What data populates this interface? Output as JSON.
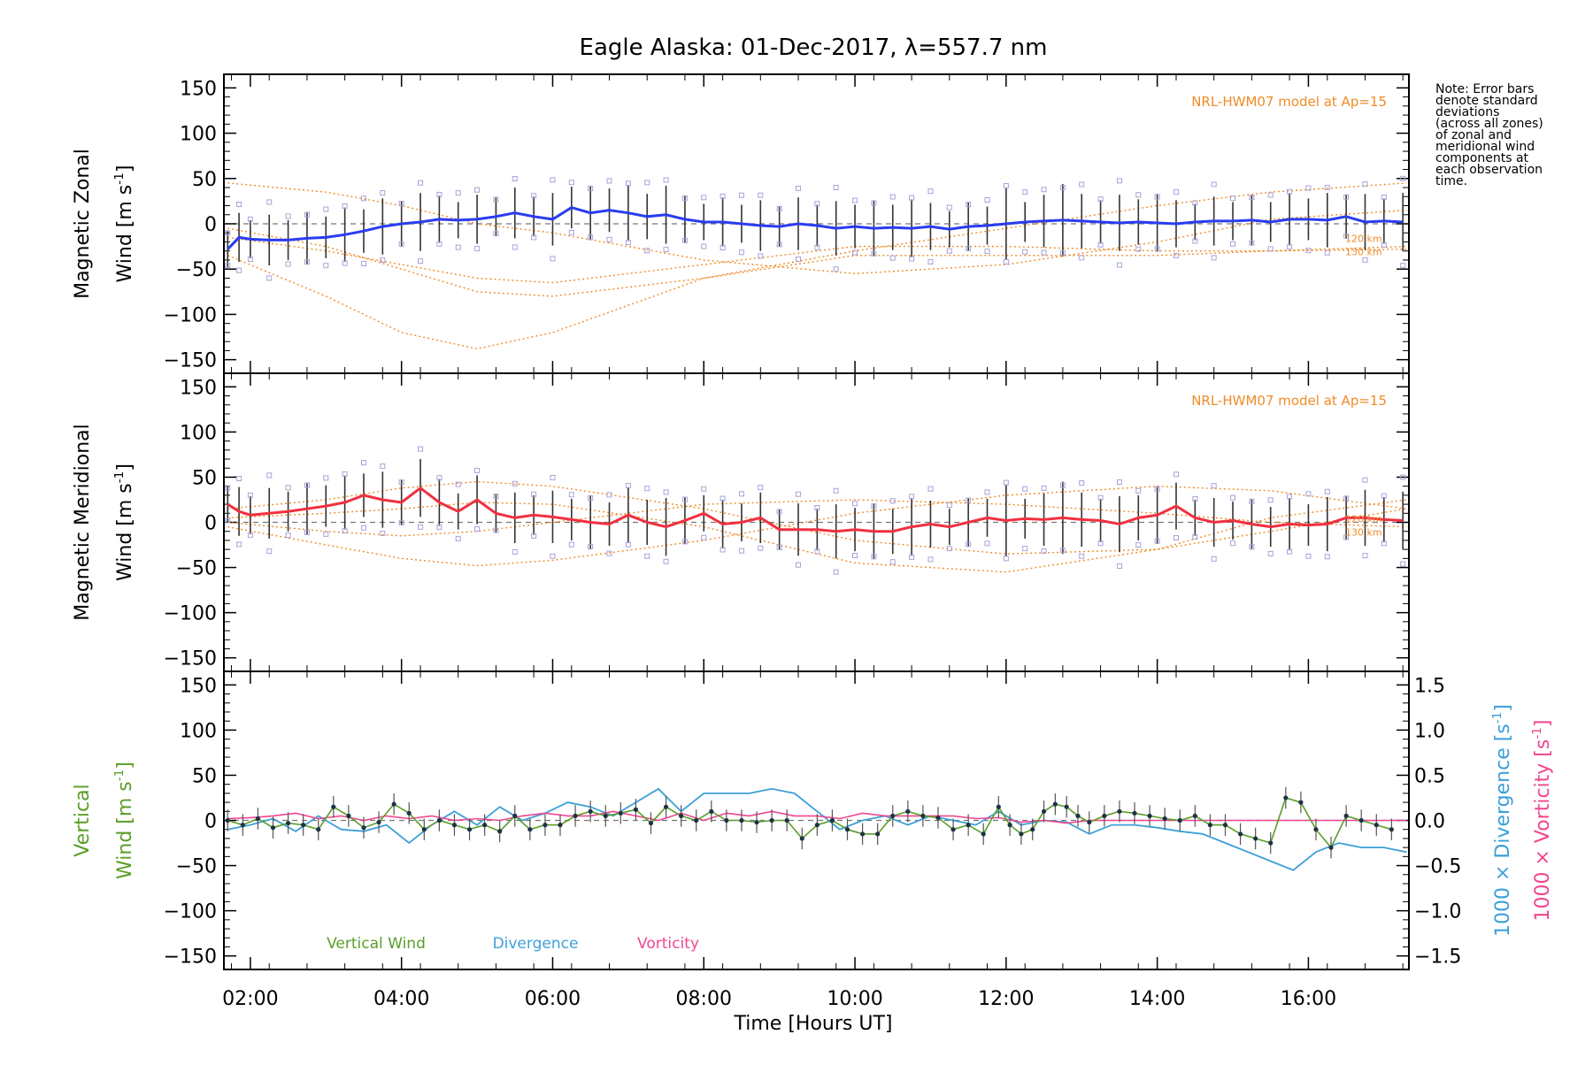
{
  "title": "Eagle Alaska: 01-Dec-2017, λ=557.7 nm",
  "note": [
    "Note: Error bars",
    "denote standard",
    "deviations",
    "(across all zones)",
    "of zonal and",
    "meridional wind",
    "components at",
    "each observation",
    "time."
  ],
  "colors": {
    "zonal": "#2a3cf0",
    "meridional": "#f03040",
    "model": "#f08c28",
    "vertical": "#5a9e28",
    "divergence": "#3ca0d8",
    "vorticity": "#f04690",
    "samples": "#a8a2d8",
    "errorbar": "#333333"
  },
  "chart_data": [
    {
      "type": "line",
      "panel": "zonal",
      "ylabel_line1": "Magnetic Zonal",
      "ylabel_line2_prefix": "Wind [m s",
      "ylabel_exp": "-1",
      "ylabel_suffix": "]",
      "ylim": [
        -165,
        165
      ],
      "yticks": [
        "150",
        "100",
        "50",
        "0",
        "−50",
        "−100",
        "−150"
      ],
      "ytick_values": [
        150,
        100,
        50,
        0,
        -50,
        -100,
        -150
      ],
      "model_label": "NRL-HWM07 model at Ap=15",
      "alt_labels": [
        "120 km",
        "130 km"
      ],
      "series": [
        {
          "name": "Zonal wind",
          "x": [
            1.7,
            1.85,
            2.0,
            2.25,
            2.5,
            2.75,
            3.0,
            3.25,
            3.5,
            3.75,
            4.0,
            4.25,
            4.5,
            4.75,
            5.0,
            5.25,
            5.5,
            5.75,
            6.0,
            6.25,
            6.5,
            6.75,
            7.0,
            7.25,
            7.5,
            7.75,
            8.0,
            8.25,
            8.5,
            8.75,
            9.0,
            9.25,
            9.5,
            9.75,
            10.0,
            10.25,
            10.5,
            10.75,
            11.0,
            11.25,
            11.5,
            11.75,
            12.0,
            12.25,
            12.5,
            12.75,
            13.0,
            13.25,
            13.5,
            13.75,
            14.0,
            14.25,
            14.5,
            14.75,
            15.0,
            15.25,
            15.5,
            15.75,
            16.0,
            16.25,
            16.5,
            16.75,
            17.0,
            17.25
          ],
          "y": [
            -28,
            -15,
            -17,
            -18,
            -18,
            -16,
            -15,
            -12,
            -8,
            -3,
            0,
            2,
            5,
            4,
            5,
            8,
            12,
            8,
            5,
            18,
            12,
            15,
            12,
            8,
            10,
            5,
            2,
            2,
            0,
            -2,
            -3,
            0,
            -2,
            -5,
            -3,
            -5,
            -4,
            -5,
            -3,
            -6,
            -3,
            -2,
            0,
            2,
            3,
            4,
            3,
            2,
            1,
            2,
            1,
            0,
            2,
            3,
            3,
            4,
            2,
            5,
            5,
            4,
            8,
            2,
            3,
            2
          ]
        }
      ],
      "model_curves": [
        {
          "x": [
            1.7,
            3.0,
            4.0,
            5.0,
            6.0,
            8.0,
            10.0,
            12.0,
            14.0,
            15.5,
            17.3
          ],
          "y": [
            45,
            35,
            20,
            0,
            -10,
            -40,
            -55,
            -45,
            -20,
            5,
            15
          ]
        },
        {
          "x": [
            1.7,
            3.0,
            4.0,
            5.0,
            6.0,
            8.0,
            10.0,
            12.0,
            14.0,
            15.5,
            17.3
          ],
          "y": [
            -5,
            -25,
            -50,
            -75,
            -80,
            -60,
            -30,
            -5,
            20,
            35,
            45
          ]
        },
        {
          "x": [
            1.7,
            3.0,
            4.0,
            5.0,
            6.0,
            8.0,
            10.0,
            12.0,
            14.0,
            15.5,
            17.3
          ],
          "y": [
            -35,
            -80,
            -120,
            -138,
            -120,
            -60,
            -35,
            -35,
            -35,
            -30,
            -28
          ]
        },
        {
          "x": [
            1.7,
            3.0,
            4.0,
            5.0,
            6.0,
            8.0,
            10.0,
            12.0,
            14.0,
            15.5,
            17.3
          ],
          "y": [
            -15,
            -30,
            -45,
            -60,
            -65,
            -45,
            -25,
            -25,
            -30,
            -30,
            -25
          ]
        }
      ]
    },
    {
      "type": "line",
      "panel": "meridional",
      "ylabel_line1": "Magnetic Meridional",
      "ylabel_line2_prefix": "Wind [m s",
      "ylabel_exp": "-1",
      "ylabel_suffix": "]",
      "ylim": [
        -165,
        165
      ],
      "yticks": [
        "150",
        "100",
        "50",
        "0",
        "−50",
        "−100",
        "−150"
      ],
      "ytick_values": [
        150,
        100,
        50,
        0,
        -50,
        -100,
        -150
      ],
      "model_label": "NRL-HWM07 model at Ap=15",
      "alt_labels": [
        "120 km",
        "130 km"
      ],
      "series": [
        {
          "name": "Meridional wind",
          "x": [
            1.7,
            1.85,
            2.0,
            2.25,
            2.5,
            2.75,
            3.0,
            3.25,
            3.5,
            3.75,
            4.0,
            4.25,
            4.5,
            4.75,
            5.0,
            5.25,
            5.5,
            5.75,
            6.0,
            6.25,
            6.5,
            6.75,
            7.0,
            7.25,
            7.5,
            7.75,
            8.0,
            8.25,
            8.5,
            8.75,
            9.0,
            9.25,
            9.5,
            9.75,
            10.0,
            10.25,
            10.5,
            10.75,
            11.0,
            11.25,
            11.5,
            11.75,
            12.0,
            12.25,
            12.5,
            12.75,
            13.0,
            13.25,
            13.5,
            13.75,
            14.0,
            14.25,
            14.5,
            14.75,
            15.0,
            15.25,
            15.5,
            15.75,
            16.0,
            16.25,
            16.5,
            16.75,
            17.0,
            17.25
          ],
          "y": [
            20,
            12,
            8,
            10,
            12,
            15,
            18,
            22,
            30,
            25,
            22,
            38,
            22,
            12,
            25,
            10,
            5,
            8,
            6,
            3,
            0,
            -2,
            8,
            0,
            -5,
            2,
            10,
            -2,
            0,
            5,
            -8,
            -8,
            -8,
            -10,
            -8,
            -10,
            -10,
            -5,
            -2,
            -5,
            0,
            5,
            2,
            4,
            3,
            5,
            3,
            2,
            -2,
            5,
            8,
            18,
            5,
            0,
            2,
            -2,
            -5,
            -2,
            -3,
            -2,
            5,
            5,
            3,
            2
          ]
        }
      ],
      "model_curves": [
        {
          "x": [
            1.7,
            3.0,
            4.0,
            5.0,
            6.0,
            8.0,
            10.0,
            12.0,
            14.0,
            15.5,
            17.3
          ],
          "y": [
            15,
            25,
            38,
            45,
            40,
            15,
            -20,
            -35,
            -30,
            -10,
            15
          ]
        },
        {
          "x": [
            1.7,
            3.0,
            4.0,
            5.0,
            6.0,
            8.0,
            10.0,
            12.0,
            14.0,
            15.5,
            17.3
          ],
          "y": [
            -5,
            -25,
            -40,
            -48,
            -42,
            -20,
            10,
            30,
            40,
            35,
            15
          ]
        },
        {
          "x": [
            1.7,
            3.0,
            4.0,
            5.0,
            6.0,
            8.0,
            10.0,
            12.0,
            14.0,
            15.5,
            17.3
          ],
          "y": [
            5,
            10,
            15,
            22,
            20,
            -5,
            -45,
            -55,
            -30,
            5,
            25
          ]
        },
        {
          "x": [
            1.7,
            3.0,
            4.0,
            5.0,
            6.0,
            8.0,
            10.0,
            12.0,
            14.0,
            15.5,
            17.3
          ],
          "y": [
            0,
            -10,
            -15,
            -10,
            0,
            20,
            25,
            20,
            10,
            0,
            -5
          ]
        }
      ]
    },
    {
      "type": "line",
      "panel": "vertical",
      "ylabel_line1": "Vertical",
      "ylabel_line2_prefix": "Wind [m s",
      "ylabel_exp": "-1",
      "ylabel_suffix": "]",
      "ylim": [
        -165,
        165
      ],
      "yticks": [
        "150",
        "100",
        "50",
        "0",
        "−50",
        "−100",
        "−150"
      ],
      "ytick_values": [
        150,
        100,
        50,
        0,
        -50,
        -100,
        -150
      ],
      "right_axis": {
        "ylim": [
          -1.65,
          1.65
        ],
        "yticks": [
          "1.5",
          "1.0",
          "0.5",
          "0.0",
          "−0.5",
          "−1.0",
          "−1.5"
        ],
        "ytick_values": [
          1.5,
          1.0,
          0.5,
          0.0,
          -0.5,
          -1.0,
          -1.5
        ],
        "label_div_prefix": "1000 × Divergence [s",
        "label_vort_prefix": "1000 × Vorticity [s",
        "label_exp": "-1",
        "label_suffix": "]"
      },
      "legend": [
        "Vertical Wind",
        "Divergence",
        "Vorticity"
      ],
      "series": [
        {
          "name": "Vertical Wind",
          "x": [
            1.7,
            1.9,
            2.1,
            2.3,
            2.5,
            2.7,
            2.9,
            3.1,
            3.3,
            3.5,
            3.7,
            3.9,
            4.1,
            4.3,
            4.5,
            4.7,
            4.9,
            5.1,
            5.3,
            5.5,
            5.7,
            5.9,
            6.1,
            6.3,
            6.5,
            6.7,
            6.9,
            7.1,
            7.3,
            7.5,
            7.7,
            7.9,
            8.1,
            8.3,
            8.5,
            8.7,
            8.9,
            9.1,
            9.3,
            9.5,
            9.7,
            9.9,
            10.1,
            10.3,
            10.5,
            10.7,
            10.9,
            11.1,
            11.3,
            11.5,
            11.7,
            11.9,
            12.05,
            12.2,
            12.35,
            12.5,
            12.65,
            12.8,
            12.95,
            13.1,
            13.3,
            13.5,
            13.7,
            13.9,
            14.1,
            14.3,
            14.5,
            14.7,
            14.9,
            15.1,
            15.3,
            15.5,
            15.7,
            15.9,
            16.1,
            16.3,
            16.5,
            16.7,
            16.9,
            17.1
          ],
          "y": [
            0,
            -5,
            2,
            -8,
            -3,
            -5,
            -10,
            15,
            5,
            -8,
            -2,
            18,
            8,
            -10,
            0,
            -5,
            -10,
            -5,
            -12,
            5,
            -10,
            -5,
            -5,
            5,
            10,
            5,
            8,
            12,
            -3,
            15,
            5,
            0,
            10,
            0,
            0,
            -2,
            0,
            0,
            -20,
            -5,
            0,
            -10,
            -15,
            -15,
            5,
            10,
            5,
            3,
            -10,
            -5,
            -15,
            15,
            -5,
            -15,
            -10,
            10,
            18,
            15,
            5,
            -2,
            5,
            10,
            8,
            5,
            2,
            0,
            5,
            -5,
            -5,
            -15,
            -20,
            -25,
            25,
            20,
            -10,
            -30,
            5,
            0,
            -5,
            -10
          ]
        },
        {
          "name": "Divergence",
          "x": [
            1.7,
            2.0,
            2.3,
            2.6,
            2.9,
            3.2,
            3.5,
            3.8,
            4.1,
            4.4,
            4.7,
            5.0,
            5.3,
            5.6,
            5.9,
            6.2,
            6.5,
            6.8,
            7.1,
            7.4,
            7.7,
            8.0,
            8.3,
            8.6,
            8.9,
            9.2,
            9.5,
            9.8,
            10.1,
            10.4,
            10.7,
            11.0,
            11.3,
            11.6,
            11.9,
            12.2,
            12.5,
            12.8,
            13.1,
            13.4,
            13.7,
            14.0,
            14.3,
            14.6,
            14.9,
            15.2,
            15.5,
            15.8,
            16.1,
            16.4,
            16.7,
            17.0,
            17.3
          ],
          "y": [
            -0.1,
            -0.05,
            0.02,
            -0.12,
            0.05,
            -0.1,
            -0.12,
            -0.05,
            -0.25,
            -0.05,
            0.1,
            -0.05,
            0.15,
            0.0,
            0.08,
            0.2,
            0.15,
            0.05,
            0.2,
            0.35,
            0.1,
            0.3,
            0.3,
            0.3,
            0.35,
            0.3,
            0.1,
            -0.1,
            0.0,
            0.05,
            -0.05,
            0.05,
            0.0,
            -0.05,
            0.1,
            -0.05,
            0.0,
            -0.02,
            -0.15,
            -0.05,
            -0.05,
            -0.08,
            -0.12,
            -0.15,
            -0.25,
            -0.35,
            -0.45,
            -0.55,
            -0.35,
            -0.25,
            -0.3,
            -0.3,
            -0.35
          ]
        },
        {
          "name": "Vorticity",
          "x": [
            1.7,
            2.0,
            2.3,
            2.6,
            2.9,
            3.2,
            3.5,
            3.8,
            4.1,
            4.4,
            4.7,
            5.0,
            5.3,
            5.6,
            5.9,
            6.2,
            6.5,
            6.8,
            7.1,
            7.4,
            7.7,
            8.0,
            8.3,
            8.6,
            8.9,
            9.2,
            9.5,
            9.8,
            10.1,
            10.4,
            10.7,
            11.0,
            11.3,
            11.6,
            11.9,
            12.2,
            12.5,
            12.8,
            13.1,
            13.4,
            13.7,
            14.0,
            14.3,
            14.6,
            14.9,
            15.2,
            15.5,
            15.8,
            16.1,
            16.4,
            16.7,
            17.0,
            17.3
          ],
          "y": [
            0.02,
            0.03,
            0.05,
            0.08,
            0.02,
            0.05,
            0.0,
            0.05,
            0.02,
            0.05,
            0.0,
            0.02,
            0.0,
            0.05,
            0.08,
            0.05,
            0.05,
            0.1,
            0.05,
            0.0,
            0.08,
            0.0,
            0.08,
            0.05,
            0.1,
            0.05,
            0.05,
            0.02,
            0.08,
            0.05,
            0.05,
            0.05,
            0.05,
            0.02,
            0.03,
            -0.02,
            0.0,
            -0.03,
            0.0,
            0.0,
            0.0,
            0.0,
            0.0,
            0.0,
            0.0,
            0.0,
            0.0,
            0.0,
            0.0,
            0.0,
            0.0,
            0.0,
            0.0
          ]
        }
      ]
    }
  ],
  "xaxis": {
    "xlim": [
      1.65,
      17.33
    ],
    "xlabel": "Time [Hours UT]",
    "ticks": [
      "02:00",
      "04:00",
      "06:00",
      "08:00",
      "10:00",
      "12:00",
      "14:00",
      "16:00"
    ],
    "tick_values": [
      2,
      4,
      6,
      8,
      10,
      12,
      14,
      16
    ]
  }
}
